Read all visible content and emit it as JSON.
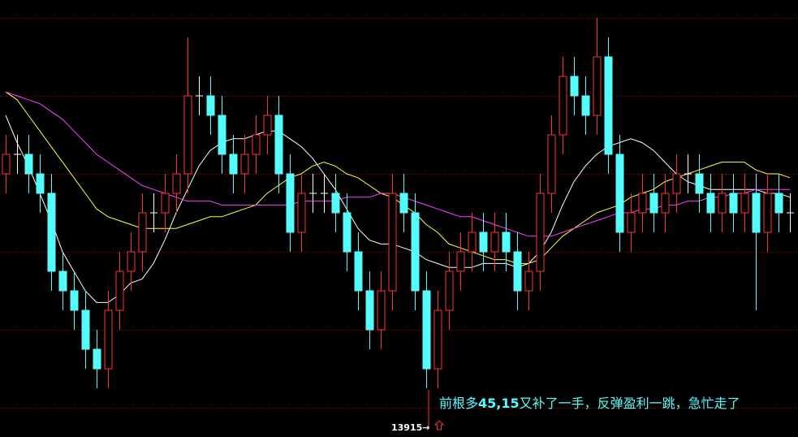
{
  "chart_data": {
    "type": "candlestick",
    "open": [
      13970,
      13975,
      13975,
      13970,
      13965,
      13945,
      13940,
      13935,
      13925,
      13920,
      13935,
      13945,
      13950,
      13960,
      13960,
      13965,
      13970,
      13990,
      13990,
      13985,
      13975,
      13970,
      13975,
      13980,
      13985,
      13970,
      13955,
      13965,
      13965,
      13965,
      13960,
      13950,
      13940,
      13930,
      13940,
      13965,
      13960,
      13940,
      13920,
      13935,
      13945,
      13950,
      13955,
      13950,
      13955,
      13950,
      13940,
      13945,
      13965,
      13980,
      13995,
      13990,
      13985,
      14000,
      13975,
      13955,
      13960,
      13965,
      13960,
      13965,
      13970,
      13970,
      13965,
      13960,
      13965,
      13960,
      13965,
      13955,
      13965,
      13960
    ],
    "high": [
      13980,
      13980,
      13980,
      13975,
      13970,
      13950,
      13945,
      13940,
      13930,
      13940,
      13950,
      13955,
      13965,
      13965,
      13970,
      13975,
      14005,
      13995,
      13995,
      13990,
      13980,
      13980,
      13985,
      13990,
      13990,
      13975,
      13970,
      13970,
      13970,
      13970,
      13965,
      13955,
      13945,
      13945,
      13970,
      13970,
      13965,
      13945,
      13940,
      13950,
      13955,
      13960,
      13960,
      13960,
      13960,
      13955,
      13950,
      13970,
      13985,
      14000,
      14000,
      13995,
      14010,
      14005,
      13980,
      13965,
      13970,
      13970,
      13970,
      13975,
      13975,
      13975,
      13970,
      13970,
      13970,
      13970,
      13970,
      13970,
      13970,
      13965
    ],
    "low": [
      13965,
      13970,
      13965,
      13960,
      13940,
      13935,
      13930,
      13920,
      13915,
      13915,
      13930,
      13940,
      13945,
      13955,
      13955,
      13960,
      13965,
      13985,
      13980,
      13970,
      13965,
      13965,
      13970,
      13975,
      13965,
      13950,
      13950,
      13960,
      13960,
      13955,
      13945,
      13935,
      13925,
      13925,
      13935,
      13955,
      13935,
      13915,
      13915,
      13930,
      13940,
      13945,
      13945,
      13945,
      13945,
      13935,
      13935,
      13940,
      13960,
      13975,
      13985,
      13980,
      13980,
      13970,
      13950,
      13950,
      13955,
      13955,
      13955,
      13960,
      13965,
      13960,
      13955,
      13955,
      13955,
      13955,
      13935,
      13950,
      13955,
      13955
    ],
    "close": [
      13975,
      13975,
      13970,
      13965,
      13945,
      13940,
      13935,
      13925,
      13920,
      13935,
      13945,
      13950,
      13960,
      13960,
      13965,
      13970,
      13990,
      13990,
      13985,
      13975,
      13970,
      13975,
      13980,
      13985,
      13970,
      13955,
      13965,
      13965,
      13965,
      13960,
      13950,
      13940,
      13930,
      13940,
      13965,
      13960,
      13940,
      13920,
      13935,
      13945,
      13950,
      13955,
      13950,
      13955,
      13950,
      13940,
      13945,
      13965,
      13980,
      13995,
      13990,
      13985,
      14000,
      13975,
      13955,
      13960,
      13965,
      13960,
      13965,
      13970,
      13970,
      13965,
      13960,
      13965,
      13960,
      13965,
      13955,
      13965,
      13960,
      13960
    ],
    "up_color": "#ff3232",
    "down_color": "#54fcfc",
    "doji_color": "#ffffff",
    "lines": [
      {
        "color": "#ffffff",
        "values": [
          13985,
          13978,
          13972,
          13965,
          13958,
          13950,
          13945,
          13940,
          13937,
          13937,
          13939,
          13942,
          13943,
          13947,
          13953,
          13960,
          13966,
          13972,
          13976,
          13978,
          13979,
          13979,
          13980,
          13981,
          13981,
          13979,
          13977,
          13974,
          13970,
          13966,
          13961,
          13956,
          13953,
          13952,
          13952,
          13951,
          13950,
          13948,
          13947,
          13946,
          13946,
          13946,
          13947,
          13947,
          13947,
          13946,
          13947,
          13950,
          13955,
          13962,
          13968,
          13972,
          13975,
          13977,
          13978,
          13979,
          13978,
          13976,
          13973,
          13970,
          13968,
          13967,
          13966,
          13966,
          13966,
          13966,
          13966,
          13965,
          13965,
          13964
        ]
      },
      {
        "color": "#ffff40",
        "values": [
          13991,
          13989,
          13985,
          13981,
          13977,
          13973,
          13969,
          13965,
          13961,
          13959,
          13958,
          13957,
          13956,
          13956,
          13956,
          13956,
          13957,
          13958,
          13959,
          13959,
          13960,
          13961,
          13962,
          13965,
          13967,
          13969,
          13970,
          13972,
          13973,
          13972,
          13970,
          13969,
          13967,
          13965,
          13964,
          13962,
          13960,
          13957,
          13955,
          13952,
          13951,
          13950,
          13949,
          13948,
          13948,
          13947,
          13947,
          13948,
          13951,
          13954,
          13956,
          13958,
          13960,
          13961,
          13962,
          13964,
          13965,
          13966,
          13968,
          13969,
          13970,
          13971,
          13972,
          13973,
          13973,
          13973,
          13971,
          13970,
          13970,
          13969
        ]
      },
      {
        "color": "#ff40ff",
        "values": [
          13991,
          13990,
          13989,
          13988,
          13986,
          13984,
          13981,
          13978,
          13975,
          13973,
          13971,
          13969,
          13967,
          13966,
          13965,
          13964,
          13963,
          13963,
          13963,
          13962,
          13962,
          13962,
          13962,
          13962,
          13962,
          13962,
          13963,
          13963,
          13963,
          13963,
          13964,
          13964,
          13964,
          13965,
          13965,
          13964,
          13963,
          13962,
          13961,
          13960,
          13959,
          13959,
          13958,
          13957,
          13956,
          13955,
          13954,
          13954,
          13954,
          13955,
          13956,
          13957,
          13958,
          13959,
          13960,
          13960,
          13961,
          13961,
          13962,
          13962,
          13963,
          13963,
          13964,
          13964,
          13965,
          13965,
          13966,
          13966,
          13966,
          13966
        ]
      }
    ],
    "ylim": [
      13910,
      14010
    ],
    "grid_lines": [
      14010,
      13990,
      13970,
      13950,
      13930,
      13910
    ],
    "grid_color": "#b00000",
    "annotation": [
      "前根多",
      "45,15",
      "又补了一手，反弹盈利一跳，急忙走了"
    ],
    "low_label": "13915→"
  }
}
